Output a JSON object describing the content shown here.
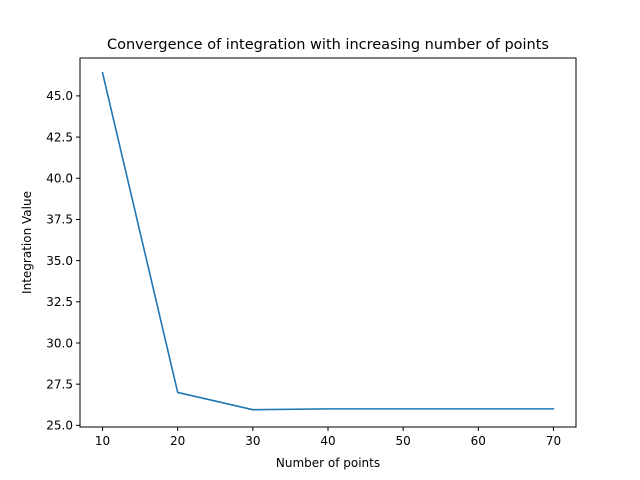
{
  "chart_data": {
    "type": "line",
    "title": "Convergence of integration with increasing number of points",
    "xlabel": "Number of points",
    "ylabel": "Integration Value",
    "x": [
      10,
      20,
      30,
      40,
      50,
      60,
      70
    ],
    "series": [
      {
        "values": [
          46.4,
          27.0,
          25.95,
          26.0,
          26.0,
          26.0,
          26.0
        ],
        "color": "#1f77b4"
      }
    ],
    "xlim": [
      7,
      73
    ],
    "ylim": [
      24.9,
      47.3
    ],
    "xticks": [
      10,
      20,
      30,
      40,
      50,
      60,
      70
    ],
    "yticks": [
      25.0,
      27.5,
      30.0,
      32.5,
      35.0,
      37.5,
      40.0,
      42.5,
      45.0
    ],
    "xtick_labels": [
      "10",
      "20",
      "30",
      "40",
      "50",
      "60",
      "70"
    ],
    "ytick_labels": [
      "25.0",
      "27.5",
      "30.0",
      "32.5",
      "35.0",
      "37.5",
      "40.0",
      "42.5",
      "45.0"
    ],
    "grid": false,
    "legend": false
  }
}
